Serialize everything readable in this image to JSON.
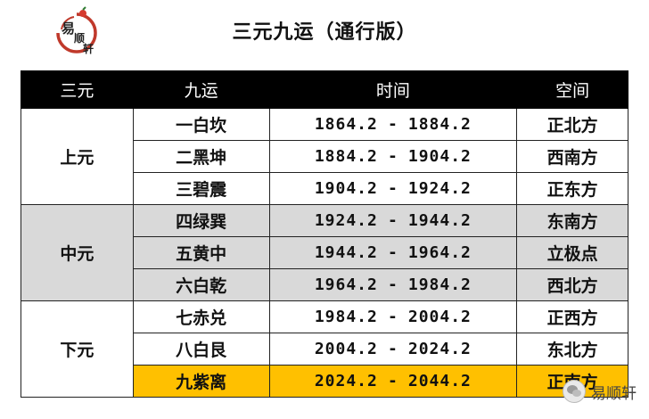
{
  "logo": {
    "text": "易顺轩"
  },
  "title": "三元九运（通行版）",
  "table": {
    "headers": [
      "三元",
      "九运",
      "时间",
      "空间"
    ],
    "groups": [
      {
        "name": "上元",
        "rows": [
          {
            "yun": "一白坎",
            "start": "1864.2",
            "end": "1884.2",
            "space": "正北方"
          },
          {
            "yun": "二黑坤",
            "start": "1884.2",
            "end": "1904.2",
            "space": "西南方"
          },
          {
            "yun": "三碧震",
            "start": "1904.2",
            "end": "1924.2",
            "space": "正东方"
          }
        ]
      },
      {
        "name": "中元",
        "rows": [
          {
            "yun": "四绿巽",
            "start": "1924.2",
            "end": "1944.2",
            "space": "东南方"
          },
          {
            "yun": "五黄中",
            "start": "1944.2",
            "end": "1964.2",
            "space": "立极点"
          },
          {
            "yun": "六白乾",
            "start": "1964.2",
            "end": "1984.2",
            "space": "西北方"
          }
        ]
      },
      {
        "name": "下元",
        "rows": [
          {
            "yun": "七赤兑",
            "start": "1984.2",
            "end": "2004.2",
            "space": "正西方"
          },
          {
            "yun": "八白艮",
            "start": "2004.2",
            "end": "2024.2",
            "space": "东北方"
          },
          {
            "yun": "九紫离",
            "start": "2024.2",
            "end": "2044.2",
            "space": "正南方"
          }
        ]
      }
    ],
    "separator": "-"
  },
  "colors": {
    "header_bg": "#000000",
    "middle_group_bg": "#d9d9d9",
    "highlight_row_bg": "#ffc000"
  },
  "watermark": {
    "icon": "wechat-icon",
    "text": "易顺轩"
  }
}
